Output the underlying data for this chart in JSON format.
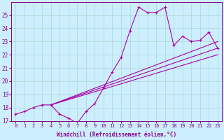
{
  "xlabel": "Windchill (Refroidissement éolien,°C)",
  "background_color": "#cceeff",
  "grid_color": "#b0ddd8",
  "line_color": "#aa00aa",
  "x_data": [
    0,
    1,
    2,
    3,
    4,
    5,
    6,
    7,
    8,
    9,
    10,
    11,
    12,
    13,
    14,
    15,
    16,
    17,
    18,
    19,
    20,
    21,
    22,
    23
  ],
  "y_main": [
    17.5,
    17.7,
    18.0,
    18.2,
    18.2,
    17.5,
    17.2,
    16.8,
    17.7,
    18.3,
    19.5,
    20.7,
    21.8,
    23.8,
    25.6,
    25.2,
    25.2,
    25.6,
    22.7,
    23.4,
    23.0,
    23.1,
    23.7,
    22.5
  ],
  "line1_x": [
    4,
    23
  ],
  "line1_y": [
    18.2,
    22.5
  ],
  "line2_x": [
    4,
    23
  ],
  "line2_y": [
    18.2,
    23.0
  ],
  "line3_x": [
    4,
    23
  ],
  "line3_y": [
    18.2,
    22.0
  ],
  "ylim": [
    17,
    26
  ],
  "xlim": [
    -0.5,
    23.5
  ],
  "yticks": [
    17,
    18,
    19,
    20,
    21,
    22,
    23,
    24,
    25
  ],
  "xticks": [
    0,
    1,
    2,
    3,
    4,
    5,
    6,
    7,
    8,
    9,
    10,
    11,
    12,
    13,
    14,
    15,
    16,
    17,
    18,
    19,
    20,
    21,
    22,
    23
  ]
}
